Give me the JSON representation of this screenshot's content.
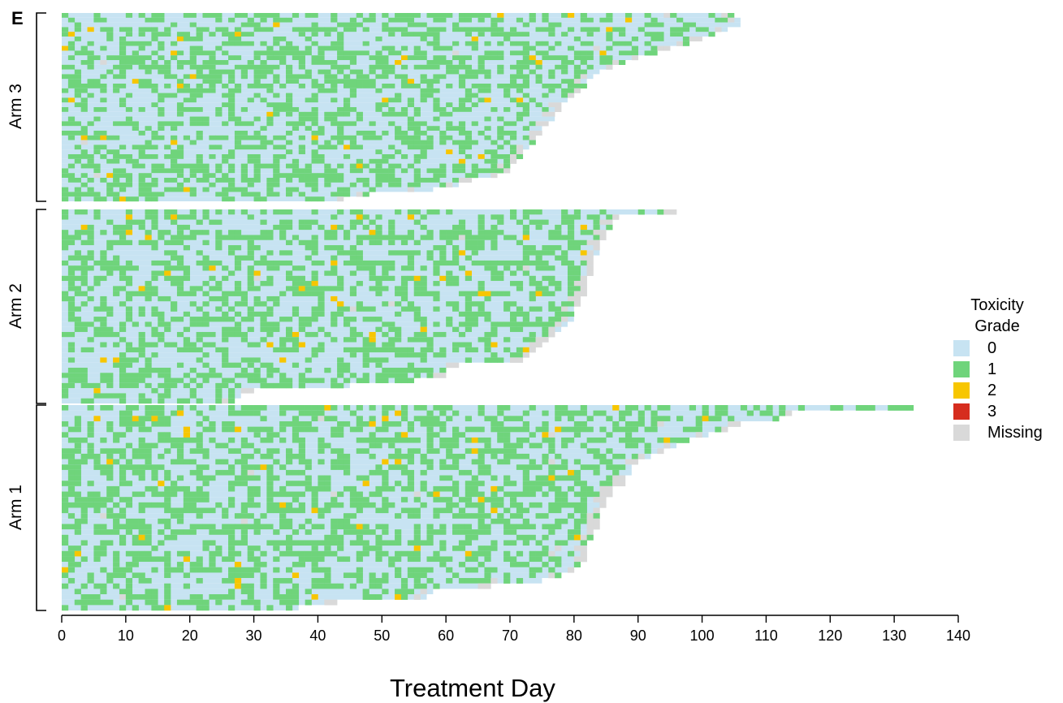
{
  "chart_data": {
    "type": "heatmap",
    "panel_letter": "E",
    "xlabel": "Treatment Day",
    "xlim": [
      0,
      140
    ],
    "xticks": [
      0,
      10,
      20,
      30,
      40,
      50,
      60,
      70,
      80,
      90,
      100,
      110,
      120,
      130,
      140
    ],
    "legend": {
      "title_line1": "Toxicity",
      "title_line2": "Grade",
      "position": "right",
      "items": [
        {
          "label": "0",
          "color": "#c7e3f2"
        },
        {
          "label": "1",
          "color": "#6fd47b"
        },
        {
          "label": "2",
          "color": "#f7c600"
        },
        {
          "label": "3",
          "color": "#d62d1e"
        },
        {
          "label": "Missing",
          "color": "#d9d9d9"
        }
      ]
    },
    "groups": [
      {
        "name": "Arm 3",
        "patients": [
          {
            "days": 105
          },
          {
            "days": 106
          },
          {
            "days": 106
          },
          {
            "days": 104
          },
          {
            "days": 102
          },
          {
            "days": 100
          },
          {
            "days": 98
          },
          {
            "days": 95
          },
          {
            "days": 93
          },
          {
            "days": 90
          },
          {
            "days": 88
          },
          {
            "days": 86
          },
          {
            "days": 84
          },
          {
            "days": 83
          },
          {
            "days": 82
          },
          {
            "days": 82
          },
          {
            "days": 81
          },
          {
            "days": 80
          },
          {
            "days": 79
          },
          {
            "days": 78
          },
          {
            "days": 78
          },
          {
            "days": 77
          },
          {
            "days": 77
          },
          {
            "days": 76
          },
          {
            "days": 75
          },
          {
            "days": 75
          },
          {
            "days": 74
          },
          {
            "days": 74
          },
          {
            "days": 73
          },
          {
            "days": 72
          },
          {
            "days": 72
          },
          {
            "days": 71
          },
          {
            "days": 70
          },
          {
            "days": 70
          },
          {
            "days": 68
          },
          {
            "days": 64
          },
          {
            "days": 62
          },
          {
            "days": 58
          },
          {
            "days": 48
          },
          {
            "days": 44
          }
        ]
      },
      {
        "name": "Arm 2",
        "patients": [
          {
            "days": 96
          },
          {
            "days": 87
          },
          {
            "days": 86
          },
          {
            "days": 86
          },
          {
            "days": 85
          },
          {
            "days": 85
          },
          {
            "days": 84
          },
          {
            "days": 84
          },
          {
            "days": 84
          },
          {
            "days": 83
          },
          {
            "days": 83
          },
          {
            "days": 83
          },
          {
            "days": 83
          },
          {
            "days": 82
          },
          {
            "days": 82
          },
          {
            "days": 82
          },
          {
            "days": 82
          },
          {
            "days": 81
          },
          {
            "days": 81
          },
          {
            "days": 80
          },
          {
            "days": 80
          },
          {
            "days": 80
          },
          {
            "days": 79
          },
          {
            "days": 78
          },
          {
            "days": 77
          },
          {
            "days": 76
          },
          {
            "days": 75
          },
          {
            "days": 74
          },
          {
            "days": 73
          },
          {
            "days": 72
          },
          {
            "days": 62
          },
          {
            "days": 60
          },
          {
            "days": 60
          },
          {
            "days": 55
          },
          {
            "days": 45
          },
          {
            "days": 30
          },
          {
            "days": 28
          },
          {
            "days": 27
          }
        ]
      },
      {
        "name": "Arm 1",
        "patients": [
          {
            "days": 133
          },
          {
            "days": 114
          },
          {
            "days": 112
          },
          {
            "days": 106
          },
          {
            "days": 104
          },
          {
            "days": 101
          },
          {
            "days": 98
          },
          {
            "days": 96
          },
          {
            "days": 94
          },
          {
            "days": 92
          },
          {
            "days": 90
          },
          {
            "days": 89
          },
          {
            "days": 89
          },
          {
            "days": 88
          },
          {
            "days": 88
          },
          {
            "days": 86
          },
          {
            "days": 86
          },
          {
            "days": 85
          },
          {
            "days": 85
          },
          {
            "days": 84
          },
          {
            "days": 84
          },
          {
            "days": 84
          },
          {
            "days": 84
          },
          {
            "days": 83
          },
          {
            "days": 83
          },
          {
            "days": 82
          },
          {
            "days": 82
          },
          {
            "days": 82
          },
          {
            "days": 82
          },
          {
            "days": 81
          },
          {
            "days": 80
          },
          {
            "days": 78
          },
          {
            "days": 75
          },
          {
            "days": 67
          },
          {
            "days": 58
          },
          {
            "days": 57
          },
          {
            "days": 43
          },
          {
            "days": 37
          }
        ]
      }
    ]
  }
}
